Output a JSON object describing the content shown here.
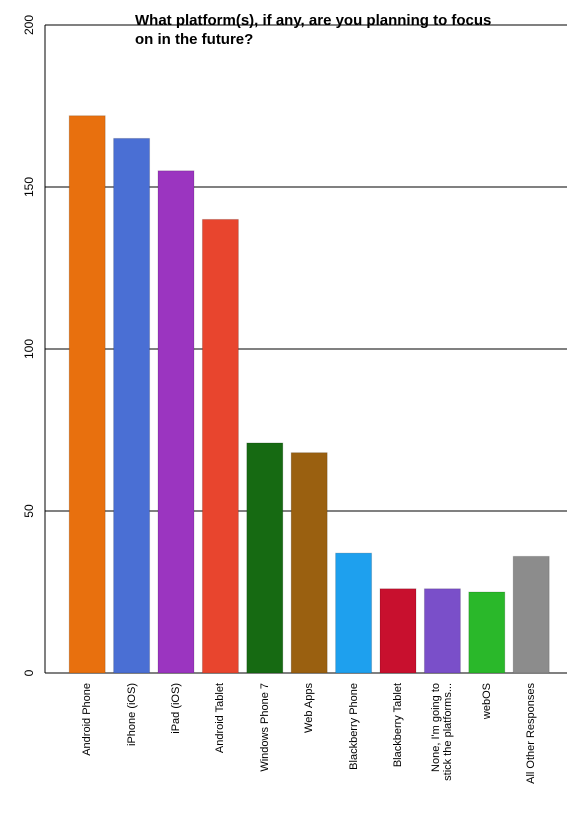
{
  "chart_data": {
    "type": "bar",
    "title": "What platform(s), if any, are you planning to focus on in the future?",
    "categories": [
      "Android Phone",
      "iPhone (iOS)",
      "iPad (iOS)",
      "Android Tablet",
      "Windows Phone 7",
      "Web Apps",
      "Blackberry Phone",
      "Blackberry Tablet",
      "None, I'm going to\nstick the platforms...",
      "webOS",
      "All Other Responses"
    ],
    "values": [
      172,
      165,
      155,
      140,
      71,
      68,
      37,
      26,
      26,
      25,
      36
    ],
    "colors": [
      "#e8700e",
      "#4a6fd4",
      "#9b35c0",
      "#e8452e",
      "#166a12",
      "#9a6010",
      "#1ea0ee",
      "#c8102e",
      "#7a4fc9",
      "#2ab82a",
      "#8c8c8c"
    ],
    "ylim": [
      0,
      200
    ],
    "yticks": [
      0,
      50,
      100,
      150,
      200
    ],
    "grid": true
  }
}
